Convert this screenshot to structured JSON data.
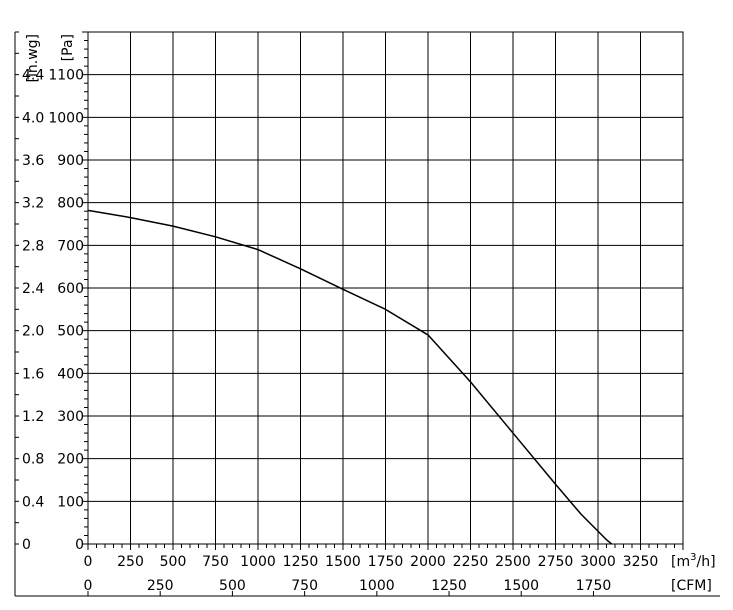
{
  "chart_data": {
    "type": "line",
    "title": "",
    "grid": true,
    "x_axis_primary": {
      "unit": "[m³/h]",
      "unit_base": "[m",
      "unit_sup": "3",
      "unit_tail": "/h]",
      "range": [
        0,
        3500
      ],
      "ticks": [
        0,
        250,
        500,
        750,
        1000,
        1250,
        1500,
        1750,
        2000,
        2250,
        2500,
        2750,
        3000,
        3250
      ],
      "tick_labels": [
        "0",
        "250",
        "500",
        "750",
        "1000",
        "1250",
        "1500",
        "1750",
        "2000",
        "2250",
        "2500",
        "2750",
        "3000",
        "3250"
      ]
    },
    "x_axis_secondary": {
      "unit": "[CFM]",
      "ticks": [
        0,
        250,
        500,
        750,
        1000,
        1250,
        1500,
        1750
      ],
      "tick_labels": [
        "0",
        "250",
        "500",
        "750",
        "1000",
        "1250",
        "1500",
        "1750"
      ],
      "m3h_per_unit": 1.699
    },
    "y_axis_primary": {
      "unit": "[Pa]",
      "range": [
        0,
        1200
      ],
      "ticks": [
        0,
        100,
        200,
        300,
        400,
        500,
        600,
        700,
        800,
        900,
        1000,
        1100
      ],
      "tick_labels": [
        "0",
        "100",
        "200",
        "300",
        "400",
        "500",
        "600",
        "700",
        "800",
        "900",
        "1000",
        "1100"
      ]
    },
    "y_axis_secondary": {
      "unit": "[in.wg]",
      "tick_labels": [
        "0",
        "0.4",
        "0.8",
        "1.2",
        "1.6",
        "2.0",
        "2.4",
        "2.8",
        "3.2",
        "3.6",
        "4.0",
        "4.4"
      ],
      "tick_positions_pa": [
        0,
        100,
        200,
        300,
        400,
        500,
        600,
        700,
        800,
        900,
        1000,
        1100
      ]
    },
    "series": [
      {
        "x": [
          0,
          250,
          500,
          750,
          1000,
          1250,
          1500,
          1750,
          2000,
          2250,
          2500,
          2750,
          2900,
          3050,
          3080
        ],
        "y": [
          782,
          765,
          745,
          720,
          690,
          645,
          597,
          550,
          490,
          380,
          260,
          140,
          70,
          10,
          0
        ]
      }
    ]
  }
}
